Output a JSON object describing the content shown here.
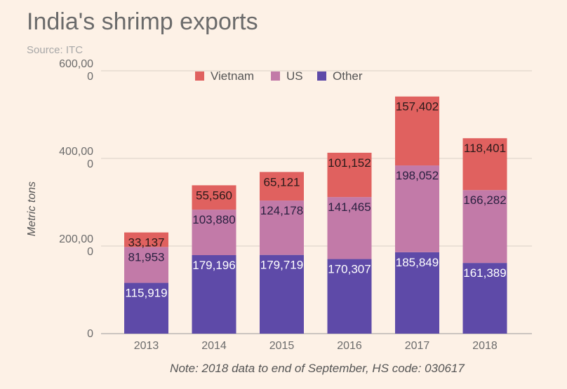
{
  "title": "India's shrimp exports",
  "source": "Source: ITC",
  "note": "Note: 2018 data to end of September, HS code: 030617",
  "chart_data": {
    "type": "bar",
    "stacked": true,
    "title": "India's shrimp exports",
    "xlabel": "",
    "ylabel": "Metric tons",
    "ylim": [
      0,
      600000
    ],
    "yticks": [
      {
        "value": 0,
        "lines": [
          "0"
        ]
      },
      {
        "value": 200000,
        "lines": [
          "200,00",
          "0"
        ]
      },
      {
        "value": 400000,
        "lines": [
          "400,00",
          "0"
        ]
      },
      {
        "value": 600000,
        "lines": [
          "600,00",
          "0"
        ]
      }
    ],
    "grid": true,
    "legend_position": "top",
    "categories": [
      "2013",
      "2014",
      "2015",
      "2016",
      "2017",
      "2018"
    ],
    "series": [
      {
        "name": "Other",
        "color": "#5e4aa8",
        "label_color": "#ffffff",
        "values": [
          115919,
          179196,
          179719,
          170307,
          185849,
          161389
        ],
        "labels": [
          "115,919",
          "179,196",
          "179,719",
          "170,307",
          "185,849",
          "161,389"
        ]
      },
      {
        "name": "US",
        "color": "#c27aa8",
        "label_color": "#2a2040",
        "values": [
          81953,
          103880,
          124178,
          141465,
          198052,
          166282
        ],
        "labels": [
          "81,953",
          "103,880",
          "124,178",
          "141,465",
          "198,052",
          "166,282"
        ]
      },
      {
        "name": "Vietnam",
        "color": "#e0615f",
        "label_color": "#2a1a1a",
        "values": [
          33137,
          55560,
          65121,
          101152,
          157402,
          118401
        ],
        "labels": [
          "33,137",
          "55,560",
          "65,121",
          "101,152",
          "157,402",
          "118,401"
        ]
      }
    ],
    "legend_order": [
      "Vietnam",
      "US",
      "Other"
    ]
  }
}
